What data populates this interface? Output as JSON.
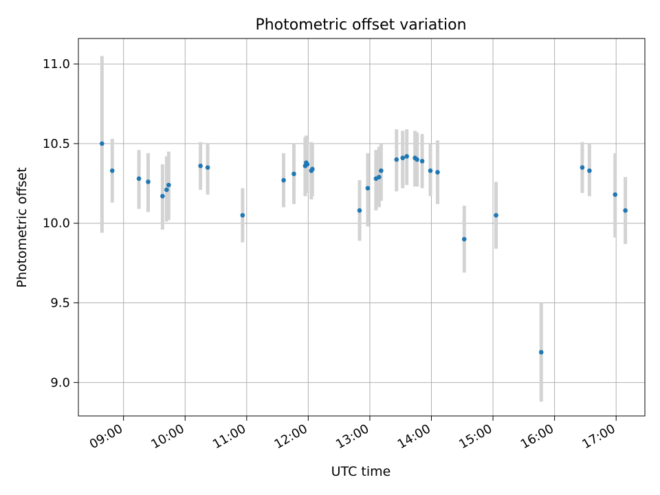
{
  "chart_data": {
    "type": "scatter",
    "title": "Photometric offset variation",
    "xlabel": "UTC time",
    "ylabel": "Photometric offset",
    "xlim": [
      "08:16",
      "17:28"
    ],
    "ylim": [
      8.79,
      11.16
    ],
    "x_ticks": [
      "09:00",
      "10:00",
      "11:00",
      "12:00",
      "13:00",
      "14:00",
      "15:00",
      "16:00",
      "17:00"
    ],
    "y_ticks": [
      9.0,
      9.5,
      10.0,
      10.5,
      11.0
    ],
    "y_tick_labels": [
      "9.0",
      "9.5",
      "10.0",
      "10.5",
      "11.0"
    ],
    "grid": true,
    "legend": "none",
    "marker_color": "#1f77b4",
    "errorbar_color": "#d3d3d3",
    "points": [
      {
        "t": "08:39",
        "y": 10.5,
        "lo": 9.94,
        "hi": 11.05
      },
      {
        "t": "08:49",
        "y": 10.33,
        "lo": 10.13,
        "hi": 10.53
      },
      {
        "t": "09:15",
        "y": 10.28,
        "lo": 10.09,
        "hi": 10.46
      },
      {
        "t": "09:24",
        "y": 10.26,
        "lo": 10.07,
        "hi": 10.44
      },
      {
        "t": "09:38",
        "y": 10.17,
        "lo": 9.96,
        "hi": 10.37
      },
      {
        "t": "09:42",
        "y": 10.21,
        "lo": 10.01,
        "hi": 10.42
      },
      {
        "t": "09:44",
        "y": 10.24,
        "lo": 10.02,
        "hi": 10.45
      },
      {
        "t": "10:15",
        "y": 10.36,
        "lo": 10.21,
        "hi": 10.51
      },
      {
        "t": "10:22",
        "y": 10.35,
        "lo": 10.18,
        "hi": 10.5
      },
      {
        "t": "10:56",
        "y": 10.05,
        "lo": 9.88,
        "hi": 10.22
      },
      {
        "t": "11:36",
        "y": 10.27,
        "lo": 10.1,
        "hi": 10.44
      },
      {
        "t": "11:46",
        "y": 10.31,
        "lo": 10.12,
        "hi": 10.5
      },
      {
        "t": "11:57",
        "y": 10.36,
        "lo": 10.17,
        "hi": 10.54
      },
      {
        "t": "11:58",
        "y": 10.38,
        "lo": 10.21,
        "hi": 10.55
      },
      {
        "t": "11:59",
        "y": 10.37,
        "lo": 10.19,
        "hi": 10.53
      },
      {
        "t": "12:03",
        "y": 10.33,
        "lo": 10.15,
        "hi": 10.51
      },
      {
        "t": "12:04",
        "y": 10.34,
        "lo": 10.17,
        "hi": 10.5
      },
      {
        "t": "12:50",
        "y": 10.08,
        "lo": 9.89,
        "hi": 10.27
      },
      {
        "t": "12:58",
        "y": 10.22,
        "lo": 9.98,
        "hi": 10.44
      },
      {
        "t": "13:06",
        "y": 10.28,
        "lo": 10.08,
        "hi": 10.46
      },
      {
        "t": "13:09",
        "y": 10.29,
        "lo": 10.1,
        "hi": 10.48
      },
      {
        "t": "13:11",
        "y": 10.33,
        "lo": 10.14,
        "hi": 10.5
      },
      {
        "t": "13:26",
        "y": 10.4,
        "lo": 10.2,
        "hi": 10.59
      },
      {
        "t": "13:32",
        "y": 10.41,
        "lo": 10.22,
        "hi": 10.58
      },
      {
        "t": "13:36",
        "y": 10.42,
        "lo": 10.24,
        "hi": 10.59
      },
      {
        "t": "13:44",
        "y": 10.41,
        "lo": 10.23,
        "hi": 10.58
      },
      {
        "t": "13:46",
        "y": 10.4,
        "lo": 10.23,
        "hi": 10.57
      },
      {
        "t": "13:51",
        "y": 10.39,
        "lo": 10.22,
        "hi": 10.56
      },
      {
        "t": "13:59",
        "y": 10.33,
        "lo": 10.17,
        "hi": 10.5
      },
      {
        "t": "14:06",
        "y": 10.32,
        "lo": 10.12,
        "hi": 10.52
      },
      {
        "t": "14:32",
        "y": 9.9,
        "lo": 9.69,
        "hi": 10.11
      },
      {
        "t": "15:03",
        "y": 10.05,
        "lo": 9.84,
        "hi": 10.26
      },
      {
        "t": "15:47",
        "y": 9.19,
        "lo": 8.88,
        "hi": 9.5
      },
      {
        "t": "16:27",
        "y": 10.35,
        "lo": 10.19,
        "hi": 10.51
      },
      {
        "t": "16:34",
        "y": 10.33,
        "lo": 10.17,
        "hi": 10.5
      },
      {
        "t": "16:59",
        "y": 10.18,
        "lo": 9.91,
        "hi": 10.44
      },
      {
        "t": "17:09",
        "y": 10.08,
        "lo": 9.87,
        "hi": 10.29
      }
    ]
  }
}
